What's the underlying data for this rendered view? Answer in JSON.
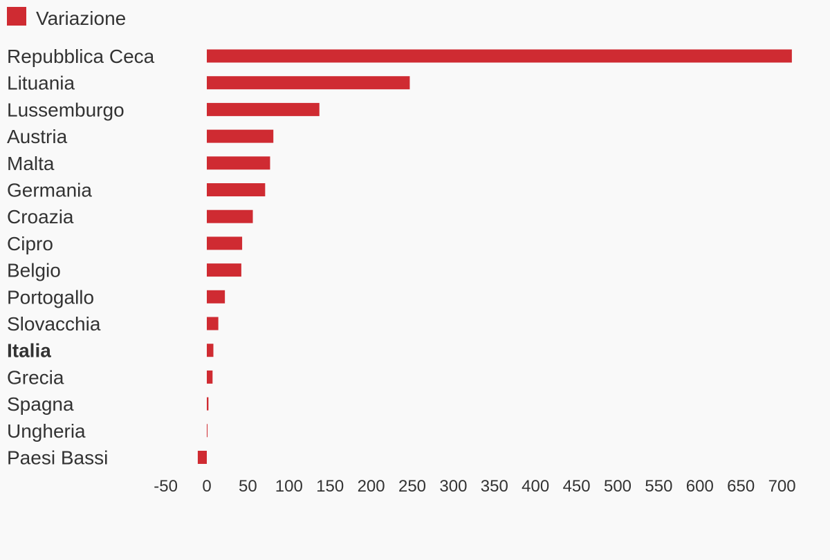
{
  "chart_data": {
    "type": "bar",
    "orientation": "horizontal",
    "legend": {
      "placement": "top-left",
      "entries": [
        {
          "name": "Variazione",
          "color": "#cf2b32"
        }
      ]
    },
    "categories": [
      "Repubblica Ceca",
      "Lituania",
      "Lussemburgo",
      "Austria",
      "Malta",
      "Germania",
      "Croazia",
      "Cipro",
      "Belgio",
      "Portogallo",
      "Slovacchia",
      "Italia",
      "Grecia",
      "Spagna",
      "Ungheria",
      "Paesi Bassi"
    ],
    "highlighted_category": "Italia",
    "series": [
      {
        "name": "Variazione",
        "color": "#cf2b32",
        "values": [
          712,
          247,
          137,
          81,
          77,
          71,
          56,
          43,
          42,
          22,
          14,
          8,
          7,
          2,
          0.5,
          -11
        ]
      }
    ],
    "xlim": [
      -50,
      700
    ],
    "xticks": [
      -50,
      0,
      50,
      100,
      150,
      200,
      250,
      300,
      350,
      400,
      450,
      500,
      550,
      600,
      650,
      700
    ],
    "grid": false
  }
}
